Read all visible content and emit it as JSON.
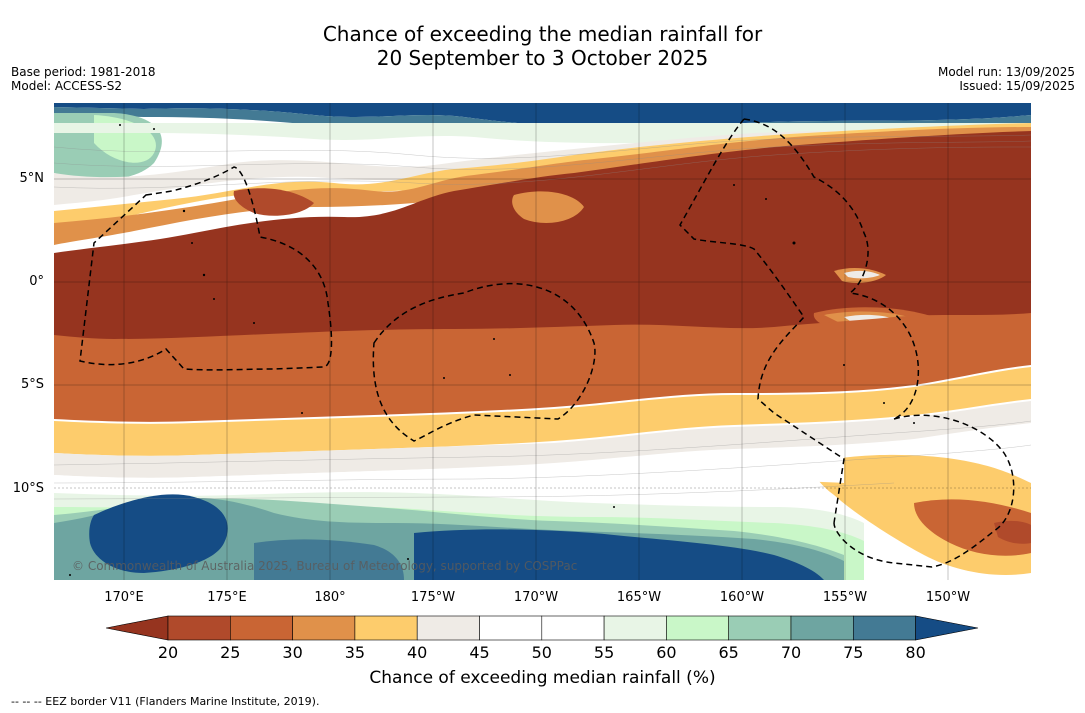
{
  "title": {
    "line1": "Chance of exceeding the median rainfall for",
    "line2": "20 September to 3 October 2025"
  },
  "meta_left": {
    "base_period": "Base period: 1981-2018",
    "model": "Model: ACCESS-S2"
  },
  "meta_right": {
    "model_run": "Model run: 13/09/2025",
    "issued": "Issued: 15/09/2025"
  },
  "map": {
    "lat_labels": [
      "5°N",
      "0°",
      "5°S",
      "10°S"
    ],
    "lon_labels": [
      "170°E",
      "175°E",
      "180°",
      "175°W",
      "170°W",
      "165°W",
      "160°W",
      "155°W",
      "150°W"
    ],
    "copyright": "© Commonwealth of Australia 2025, Bureau of Meteorology, supported by COSPPac"
  },
  "colorbar": {
    "ticks": [
      "20",
      "25",
      "30",
      "35",
      "40",
      "45",
      "50",
      "55",
      "60",
      "65",
      "70",
      "75",
      "80"
    ],
    "colors": [
      "#96341f",
      "#b04a2b",
      "#c96534",
      "#e0914a",
      "#fdcc6c",
      "#efebe6",
      "#ffffff",
      "#ffffff",
      "#e8f5e6",
      "#c9f7c8",
      "#9acdb5",
      "#6ea5a1",
      "#437a94",
      "#154c85"
    ],
    "label": "Chance of exceeding median rainfall (%)"
  },
  "footnote": "-- -- -- EEZ border V11 (Flanders Marine Institute, 2019)."
}
